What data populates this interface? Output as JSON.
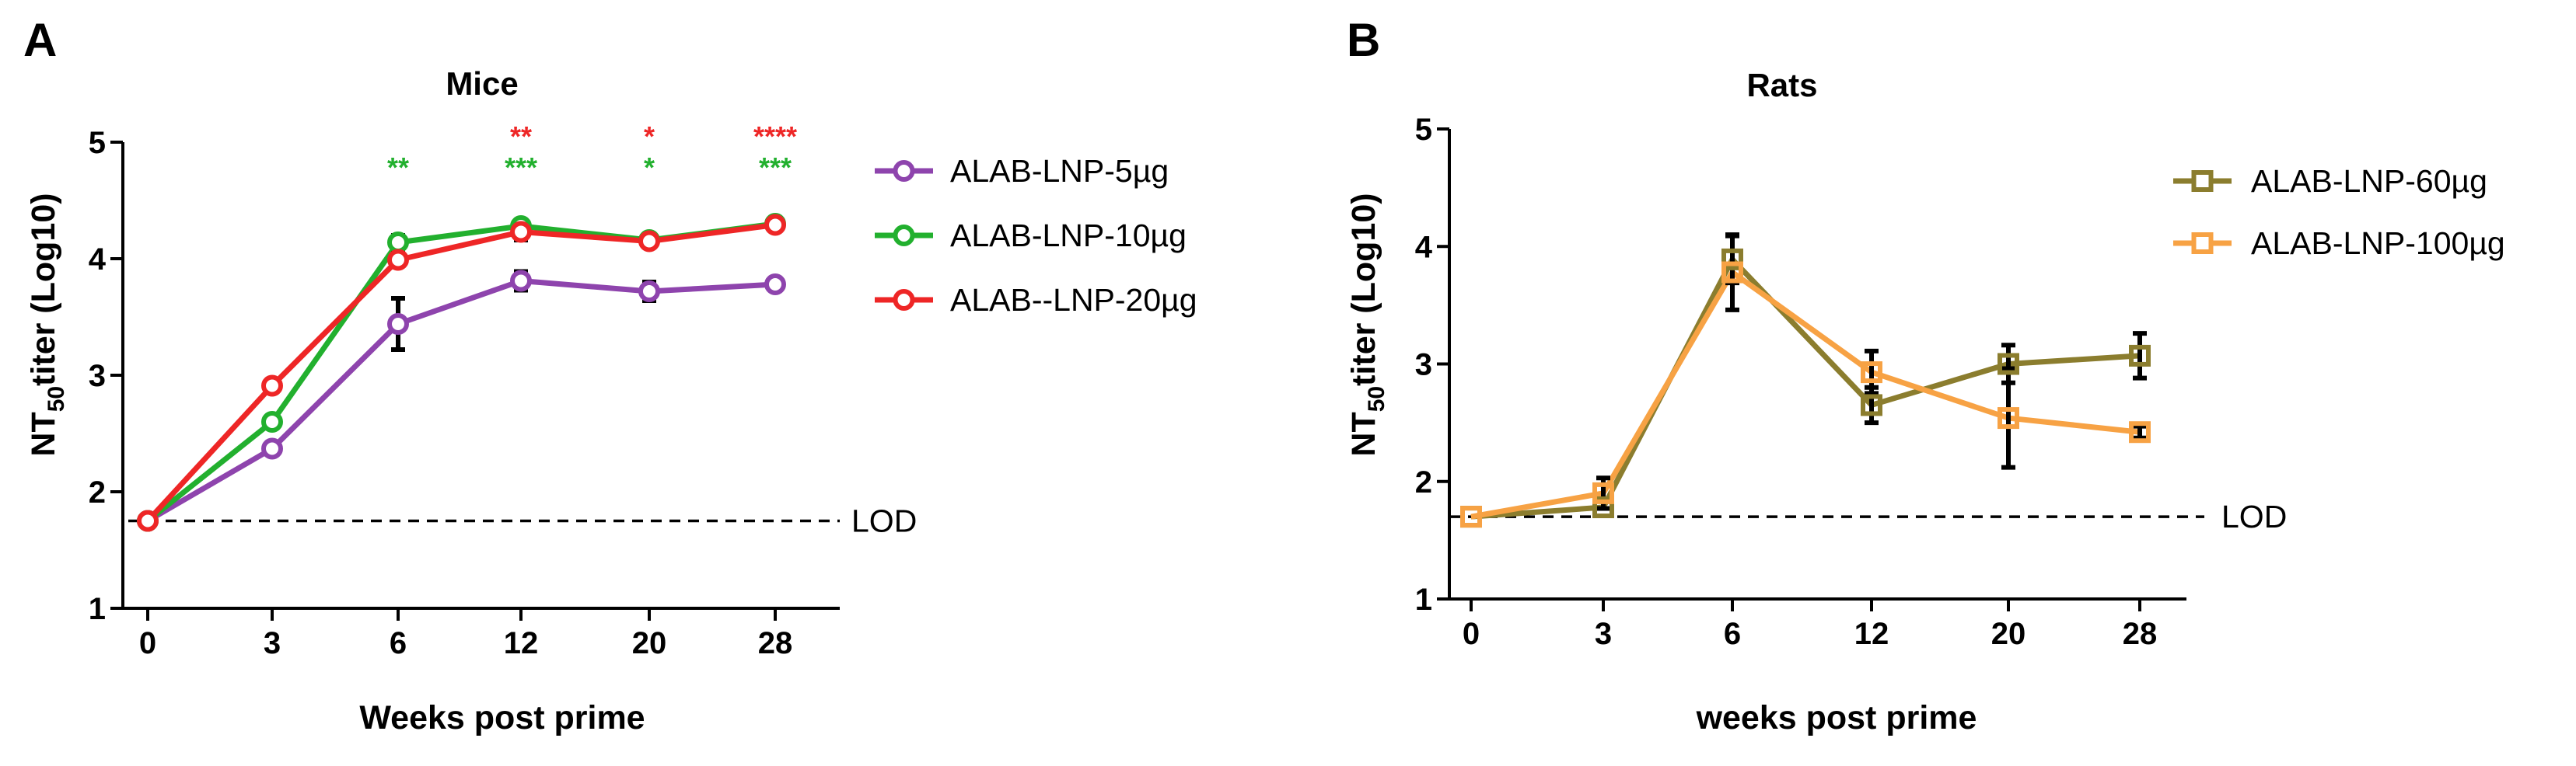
{
  "colors": {
    "purple": "#8e44ad",
    "green": "#22b02e",
    "red": "#ee2626",
    "olive": "#8b7d2e",
    "orange": "#f7a244",
    "sig_green": "#22b02e",
    "sig_red": "#ee2626"
  },
  "chart_data": [
    {
      "panel": "A",
      "type": "line",
      "title": "Mice",
      "xlabel": "Weeks post prime",
      "ylabel_main": "NT",
      "ylabel_sub": "50",
      "ylabel_rest": "titer (Log10)",
      "ylim": [
        1,
        5
      ],
      "yticks": [
        "1",
        "2",
        "3",
        "4",
        "5"
      ],
      "categories": [
        "0",
        "3",
        "6",
        "12",
        "20",
        "28"
      ],
      "lod": {
        "value": 1.75,
        "label": "LOD"
      },
      "marker": "circle",
      "legend_position": "right",
      "series": [
        {
          "name": "ALAB-LNP-5µg",
          "color": "purple",
          "values": [
            1.75,
            2.37,
            3.44,
            3.81,
            3.72,
            3.78
          ],
          "errors": [
            0.02,
            0.04,
            0.22,
            0.08,
            0.08,
            0.04
          ]
        },
        {
          "name": "ALAB-LNP-10µg",
          "color": "green",
          "values": [
            1.75,
            2.6,
            4.14,
            4.28,
            4.16,
            4.3
          ],
          "errors": [
            0.02,
            0.04,
            0.06,
            0.05,
            0.05,
            0.04
          ]
        },
        {
          "name": "ALAB--LNP-20µg",
          "color": "red",
          "values": [
            1.75,
            2.91,
            3.99,
            4.23,
            4.15,
            4.29
          ],
          "errors": [
            0.02,
            0.03,
            0.05,
            0.07,
            0.04,
            0.04
          ]
        }
      ],
      "significance": [
        {
          "x": "6",
          "color": "sig_green",
          "text": "**",
          "row": 1
        },
        {
          "x": "12",
          "color": "sig_red",
          "text": "**",
          "row": 0
        },
        {
          "x": "12",
          "color": "sig_green",
          "text": "***",
          "row": 1
        },
        {
          "x": "20",
          "color": "sig_red",
          "text": "*",
          "row": 0
        },
        {
          "x": "20",
          "color": "sig_green",
          "text": "*",
          "row": 1
        },
        {
          "x": "28",
          "color": "sig_red",
          "text": "****",
          "row": 0
        },
        {
          "x": "28",
          "color": "sig_green",
          "text": "***",
          "row": 1
        }
      ]
    },
    {
      "panel": "B",
      "type": "line",
      "title": "Rats",
      "xlabel": "weeks post prime",
      "ylabel_main": "NT",
      "ylabel_sub": "50",
      "ylabel_rest": "titer (Log10)",
      "ylim": [
        1,
        5
      ],
      "yticks": [
        "1",
        "2",
        "3",
        "4",
        "5"
      ],
      "categories": [
        "0",
        "3",
        "6",
        "12",
        "20",
        "28"
      ],
      "lod": {
        "value": 1.7,
        "label": "LOD"
      },
      "marker": "square",
      "legend_position": "top-right",
      "series": [
        {
          "name": "ALAB-LNP-60µg",
          "color": "olive",
          "values": [
            1.7,
            1.78,
            3.89,
            2.65,
            3.0,
            3.07
          ],
          "errors": [
            0.02,
            0.04,
            0.2,
            0.15,
            0.16,
            0.19
          ]
        },
        {
          "name": "ALAB-LNP-100µg",
          "color": "orange",
          "values": [
            1.7,
            1.9,
            3.78,
            2.93,
            2.54,
            2.42
          ],
          "errors": [
            0.02,
            0.13,
            0.32,
            0.18,
            0.42,
            0.05
          ]
        }
      ],
      "significance": []
    }
  ]
}
